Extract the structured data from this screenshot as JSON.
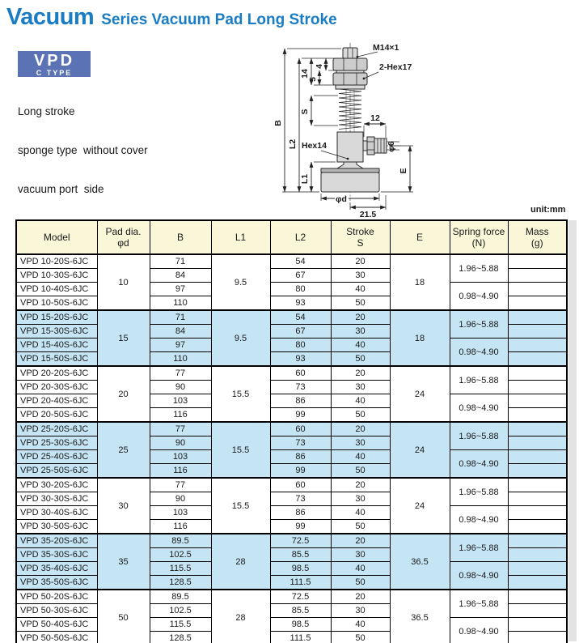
{
  "page": {
    "title_main": "Vacuum",
    "title_sub": "Series Vacuum Pad Long Stroke",
    "badge": {
      "line1": "VPD",
      "line2": "C TYPE"
    },
    "description": [
      "Long stroke",
      "sponge type  without cover",
      "vacuum port  side"
    ],
    "unit_label": "unit:mm"
  },
  "colors": {
    "title_blue": "#1a7cc4",
    "badge_blue": "#5b73b4",
    "header_cream": "#faf6d8",
    "highlight_blue": "#c5e5f5",
    "border_black": "#000000"
  },
  "diagram": {
    "labels": {
      "thread": "M14×1",
      "hex_nuts": "2-Hex17",
      "dim_14": "14",
      "dim_4": "4",
      "dim_5": "5",
      "dim_S": "S",
      "dim_B": "B",
      "dim_L2": "L2",
      "hex_body": "Hex14",
      "dim_12": "12",
      "dim_L1": "L1",
      "dim_phi6": "φ6",
      "dim_E": "E",
      "dim_phid": "φd",
      "dim_21_5": "21.5"
    }
  },
  "table": {
    "headers": [
      [
        "Model"
      ],
      [
        "Pad dia.",
        "φd"
      ],
      [
        "B"
      ],
      [
        "L1"
      ],
      [
        "L2"
      ],
      [
        "Stroke",
        "S"
      ],
      [
        "E"
      ],
      [
        "Spring force",
        "(N)"
      ],
      [
        "Mass",
        "(g)"
      ]
    ],
    "groups": [
      {
        "pad_dia": "10",
        "l1": "9.5",
        "e": "18",
        "highlight": false,
        "spring_forces": [
          "1.96~5.88",
          "0.98~4.90"
        ],
        "rows": [
          {
            "model": "VPD 10-20S-6JC",
            "b": "71",
            "l2": "54",
            "stroke": "20",
            "mass": ""
          },
          {
            "model": "VPD 10-30S-6JC",
            "b": "84",
            "l2": "67",
            "stroke": "30",
            "mass": ""
          },
          {
            "model": "VPD 10-40S-6JC",
            "b": "97",
            "l2": "80",
            "stroke": "40",
            "mass": ""
          },
          {
            "model": "VPD 10-50S-6JC",
            "b": "110",
            "l2": "93",
            "stroke": "50",
            "mass": ""
          }
        ]
      },
      {
        "pad_dia": "15",
        "l1": "9.5",
        "e": "18",
        "highlight": true,
        "spring_forces": [
          "1.96~5.88",
          "0.98~4.90"
        ],
        "rows": [
          {
            "model": "VPD 15-20S-6JC",
            "b": "71",
            "l2": "54",
            "stroke": "20",
            "mass": ""
          },
          {
            "model": "VPD 15-30S-6JC",
            "b": "84",
            "l2": "67",
            "stroke": "30",
            "mass": ""
          },
          {
            "model": "VPD 15-40S-6JC",
            "b": "97",
            "l2": "80",
            "stroke": "40",
            "mass": ""
          },
          {
            "model": "VPD 15-50S-6JC",
            "b": "110",
            "l2": "93",
            "stroke": "50",
            "mass": ""
          }
        ]
      },
      {
        "pad_dia": "20",
        "l1": "15.5",
        "e": "24",
        "highlight": false,
        "spring_forces": [
          "1.96~5.88",
          "0.98~4.90"
        ],
        "rows": [
          {
            "model": "VPD 20-20S-6JC",
            "b": "77",
            "l2": "60",
            "stroke": "20",
            "mass": ""
          },
          {
            "model": "VPD 20-30S-6JC",
            "b": "90",
            "l2": "73",
            "stroke": "30",
            "mass": ""
          },
          {
            "model": "VPD 20-40S-6JC",
            "b": "103",
            "l2": "86",
            "stroke": "40",
            "mass": ""
          },
          {
            "model": "VPD 20-50S-6JC",
            "b": "116",
            "l2": "99",
            "stroke": "50",
            "mass": ""
          }
        ]
      },
      {
        "pad_dia": "25",
        "l1": "15.5",
        "e": "24",
        "highlight": true,
        "spring_forces": [
          "1.96~5.88",
          "0.98~4.90"
        ],
        "rows": [
          {
            "model": "VPD 25-20S-6JC",
            "b": "77",
            "l2": "60",
            "stroke": "20",
            "mass": ""
          },
          {
            "model": "VPD 25-30S-6JC",
            "b": "90",
            "l2": "73",
            "stroke": "30",
            "mass": ""
          },
          {
            "model": "VPD 25-40S-6JC",
            "b": "103",
            "l2": "86",
            "stroke": "40",
            "mass": ""
          },
          {
            "model": "VPD 25-50S-6JC",
            "b": "116",
            "l2": "99",
            "stroke": "50",
            "mass": ""
          }
        ]
      },
      {
        "pad_dia": "30",
        "l1": "15.5",
        "e": "24",
        "highlight": false,
        "spring_forces": [
          "1.96~5.88",
          "0.98~4.90"
        ],
        "rows": [
          {
            "model": "VPD 30-20S-6JC",
            "b": "77",
            "l2": "60",
            "stroke": "20",
            "mass": ""
          },
          {
            "model": "VPD 30-30S-6JC",
            "b": "90",
            "l2": "73",
            "stroke": "30",
            "mass": ""
          },
          {
            "model": "VPD 30-40S-6JC",
            "b": "103",
            "l2": "86",
            "stroke": "40",
            "mass": ""
          },
          {
            "model": "VPD 30-50S-6JC",
            "b": "116",
            "l2": "99",
            "stroke": "50",
            "mass": ""
          }
        ]
      },
      {
        "pad_dia": "35",
        "l1": "28",
        "e": "36.5",
        "highlight": true,
        "spring_forces": [
          "1.96~5.88",
          "0.98~4.90"
        ],
        "rows": [
          {
            "model": "VPD 35-20S-6JC",
            "b": "89.5",
            "l2": "72.5",
            "stroke": "20",
            "mass": ""
          },
          {
            "model": "VPD 35-30S-6JC",
            "b": "102.5",
            "l2": "85.5",
            "stroke": "30",
            "mass": ""
          },
          {
            "model": "VPD 35-40S-6JC",
            "b": "115.5",
            "l2": "98.5",
            "stroke": "40",
            "mass": ""
          },
          {
            "model": "VPD 35-50S-6JC",
            "b": "128.5",
            "l2": "111.5",
            "stroke": "50",
            "mass": ""
          }
        ]
      },
      {
        "pad_dia": "50",
        "l1": "28",
        "e": "36.5",
        "highlight": false,
        "spring_forces": [
          "1.96~5.88",
          "0.98~4.90"
        ],
        "rows": [
          {
            "model": "VPD 50-20S-6JC",
            "b": "89.5",
            "l2": "72.5",
            "stroke": "20",
            "mass": ""
          },
          {
            "model": "VPD 50-30S-6JC",
            "b": "102.5",
            "l2": "85.5",
            "stroke": "30",
            "mass": ""
          },
          {
            "model": "VPD 50-40S-6JC",
            "b": "115.5",
            "l2": "98.5",
            "stroke": "40",
            "mass": ""
          },
          {
            "model": "VPD 50-50S-6JC",
            "b": "128.5",
            "l2": "111.5",
            "stroke": "50",
            "mass": ""
          }
        ]
      }
    ]
  }
}
